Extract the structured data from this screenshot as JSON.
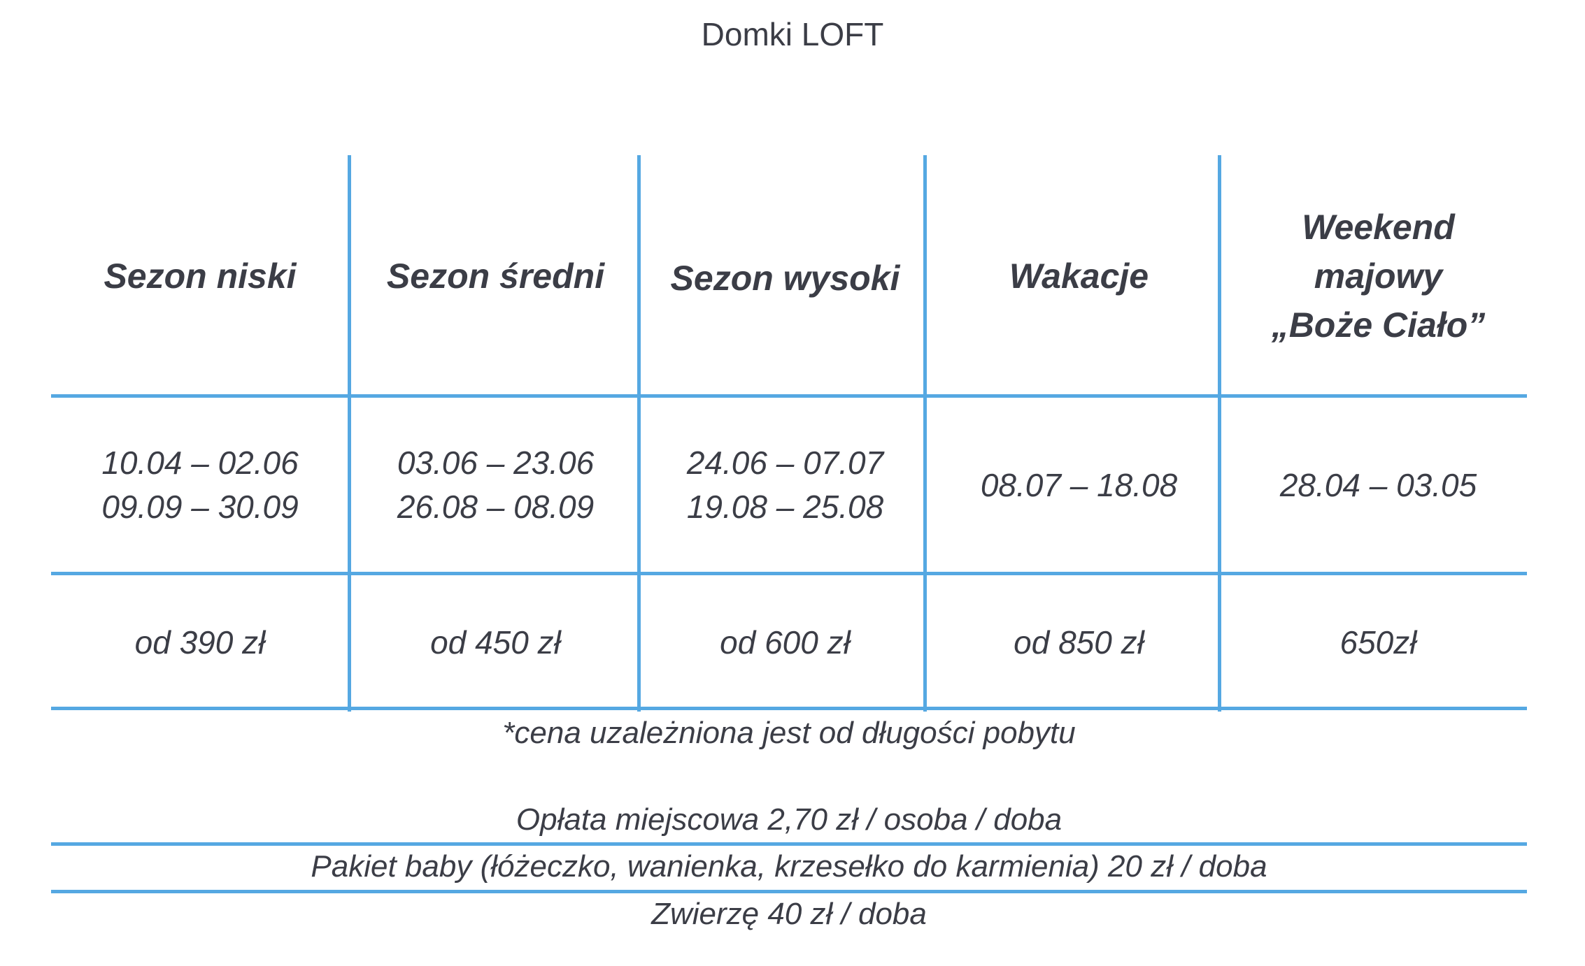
{
  "title": "Domki LOFT",
  "columns": [
    {
      "header": [
        "Sezon niski"
      ],
      "dates": [
        "10.04 – 02.06",
        "09.09 – 30.09"
      ],
      "price": "od 390 zł"
    },
    {
      "header": [
        "Sezon średni"
      ],
      "dates": [
        "03.06 – 23.06",
        "26.08 – 08.09"
      ],
      "price": "od 450 zł"
    },
    {
      "header": [
        "Sezon wysoki"
      ],
      "dates": [
        "24.06 – 07.07",
        "19.08 – 25.08"
      ],
      "price": "od 600 zł"
    },
    {
      "header": [
        "Wakacje"
      ],
      "dates": [
        "08.07 – 18.08"
      ],
      "price": "od 850 zł"
    },
    {
      "header": [
        "Weekend",
        "majowy",
        "„Boże Ciało”"
      ],
      "dates": [
        "28.04 – 03.05"
      ],
      "price": "650zł"
    }
  ],
  "notes": {
    "price_note": "*cena uzależniona jest od długości pobytu",
    "local_fee": "Opłata miejscowa 2,70 zł / osoba / doba",
    "baby_package": "Pakiet baby (łóżeczko, wanienka, krzesełko do karmienia) 20 zł / doba",
    "pet": "Zwierzę 40 zł / doba"
  },
  "colors": {
    "grid_line": "#55a8e2",
    "text": "#3b3d46"
  }
}
